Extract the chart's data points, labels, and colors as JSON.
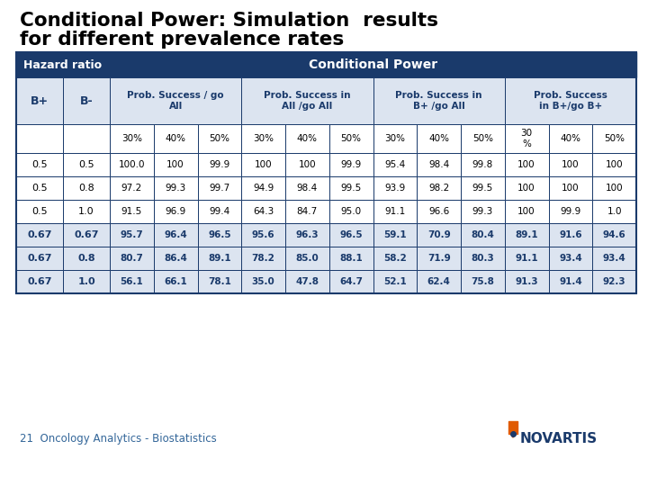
{
  "title_line1": "Conditional Power: Simulation  results",
  "title_line2": "for different prevalence rates",
  "title_color": "#000000",
  "title_fontsize": 15.5,
  "header_bg": "#1a3a6b",
  "header_text_color": "#ffffff",
  "subheader_bg": "#dce4f0",
  "subheader_text_color": "#1a3a6b",
  "row_bg_normal": "#ffffff",
  "row_bg_bold": "#dce4f0",
  "row_text_normal": "#000000",
  "row_text_bold": "#1a3a6b",
  "border_color": "#1a3a6b",
  "subgroup_labels": [
    "Prob. Success / go\nAll",
    "Prob. Success in\nAll /go All",
    "Prob. Success in\nB+ /go All",
    "Prob. Success\nin B+/go B+"
  ],
  "percentages": [
    "30%",
    "40%",
    "50%",
    "30%",
    "40%",
    "50%",
    "30%",
    "40%",
    "50%",
    "30\n%",
    "40%",
    "50%"
  ],
  "rows": [
    {
      "B+": "0.5",
      "B-": "0.5",
      "vals": [
        "100.0",
        "100",
        "99.9",
        "100",
        "100",
        "99.9",
        "95.4",
        "98.4",
        "99.8",
        "100",
        "100",
        "100"
      ],
      "bold": false
    },
    {
      "B+": "0.5",
      "B-": "0.8",
      "vals": [
        "97.2",
        "99.3",
        "99.7",
        "94.9",
        "98.4",
        "99.5",
        "93.9",
        "98.2",
        "99.5",
        "100",
        "100",
        "100"
      ],
      "bold": false
    },
    {
      "B+": "0.5",
      "B-": "1.0",
      "vals": [
        "91.5",
        "96.9",
        "99.4",
        "64.3",
        "84.7",
        "95.0",
        "91.1",
        "96.6",
        "99.3",
        "100",
        "99.9",
        "1.0"
      ],
      "bold": false
    },
    {
      "B+": "0.67",
      "B-": "0.67",
      "vals": [
        "95.7",
        "96.4",
        "96.5",
        "95.6",
        "96.3",
        "96.5",
        "59.1",
        "70.9",
        "80.4",
        "89.1",
        "91.6",
        "94.6"
      ],
      "bold": true
    },
    {
      "B+": "0.67",
      "B-": "0.8",
      "vals": [
        "80.7",
        "86.4",
        "89.1",
        "78.2",
        "85.0",
        "88.1",
        "58.2",
        "71.9",
        "80.3",
        "91.1",
        "93.4",
        "93.4"
      ],
      "bold": true
    },
    {
      "B+": "0.67",
      "B-": "1.0",
      "vals": [
        "56.1",
        "66.1",
        "78.1",
        "35.0",
        "47.8",
        "64.7",
        "52.1",
        "62.4",
        "75.8",
        "91.3",
        "91.4",
        "92.3"
      ],
      "bold": true
    }
  ],
  "footer_left": "21  Oncology Analytics - Biostatistics",
  "footer_fontsize": 8.5,
  "novartis_text": "NOVARTIS",
  "novartis_color": "#1a3a6b",
  "novartis_fontsize": 11
}
